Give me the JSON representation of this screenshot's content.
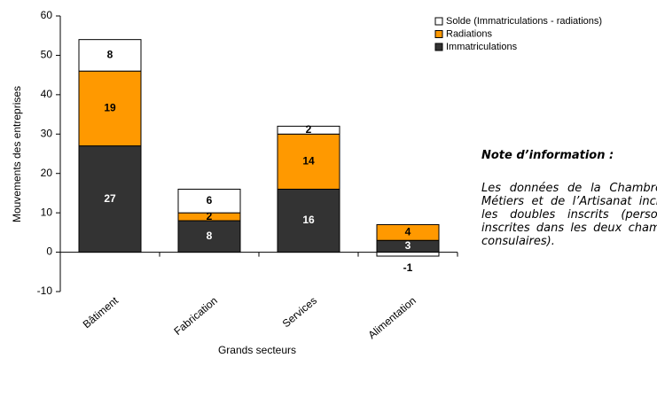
{
  "chart_data": {
    "type": "stacked_bar",
    "categories": [
      "Bâtiment",
      "Fabrication",
      "Services",
      "Alimentation"
    ],
    "series": [
      {
        "name": "Immatriculations",
        "color": "#333333",
        "values": [
          27,
          8,
          16,
          3
        ]
      },
      {
        "name": "Radiations",
        "color": "#ff9900",
        "values": [
          19,
          2,
          14,
          4
        ]
      },
      {
        "name": "Solde (Immatriculations - radiations)",
        "color": "#ffffff",
        "values": [
          8,
          6,
          2,
          -1
        ]
      }
    ],
    "ylabel": "Mouvements des entreprises",
    "xlabel": "Grands secteurs",
    "ylim": [
      -10,
      60
    ],
    "yticks": [
      -10,
      0,
      10,
      20,
      30,
      40,
      50,
      60
    ],
    "legend": "top-right"
  },
  "note": {
    "title": "Note d’information :",
    "text": "Les données de la Chambre de Métiers et de l’Artisanat incluent les doubles inscrits (personnes inscrites dans les deux chambres consulaires)."
  }
}
